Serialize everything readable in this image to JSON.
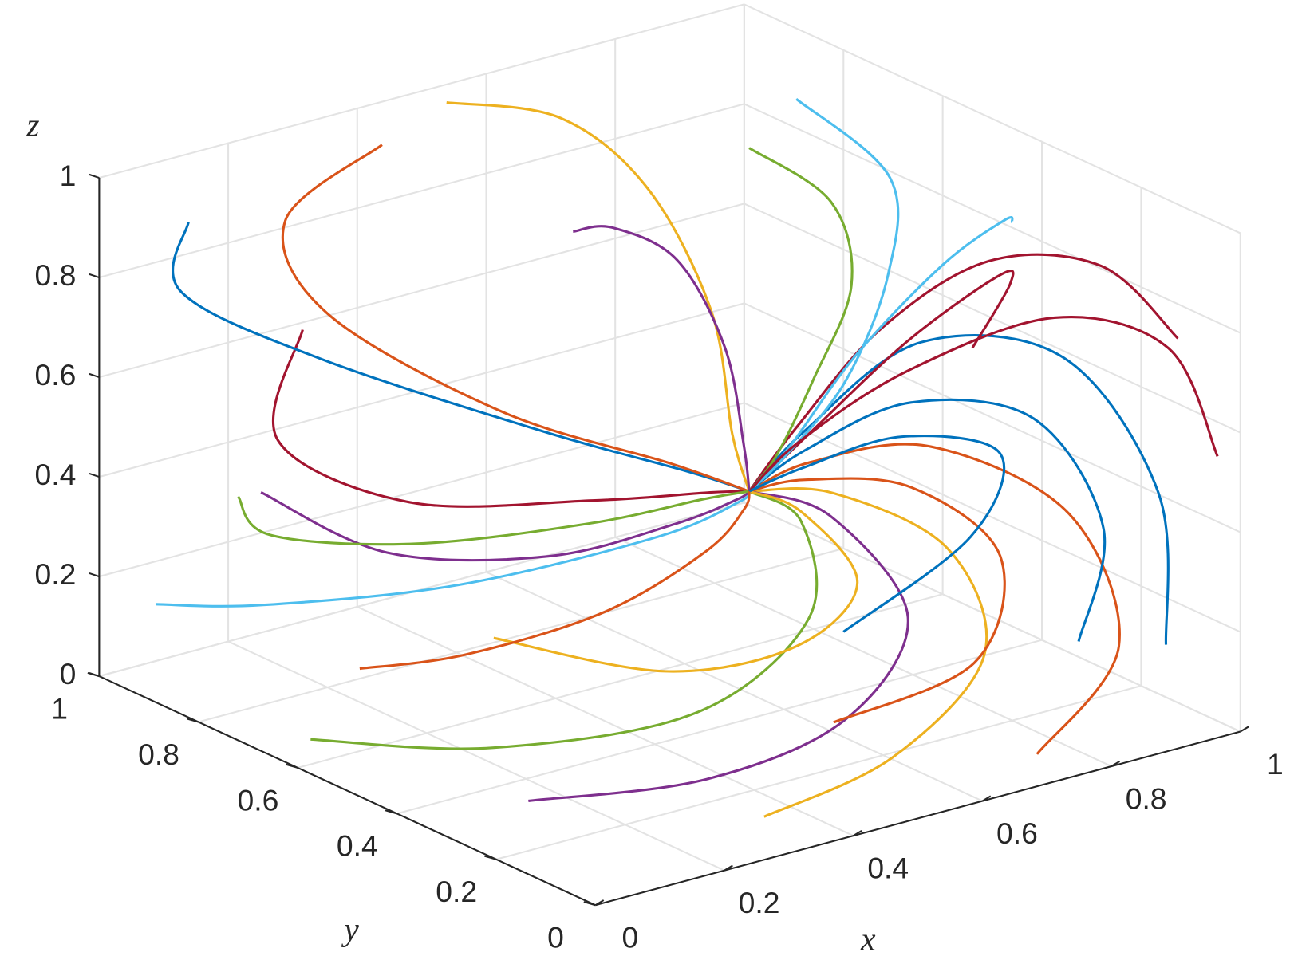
{
  "chart_data": {
    "type": "line3d",
    "xlabel": "x",
    "ylabel": "y",
    "zlabel": "z",
    "xlim": [
      0,
      1
    ],
    "ylim": [
      0,
      1
    ],
    "zlim": [
      0,
      1
    ],
    "xticks": [
      0,
      0.2,
      0.4,
      0.6,
      0.8,
      1
    ],
    "yticks": [
      0,
      0.2,
      0.4,
      0.6,
      0.8,
      1
    ],
    "zticks": [
      0,
      0.2,
      0.4,
      0.6,
      0.8,
      1
    ],
    "grid": true,
    "series": [
      {
        "color": "#A2142F",
        "x": [
          0.98,
          0.9,
          0.78,
          0.66,
          0.56,
          0.5
        ],
        "y": [
          0.1,
          0.15,
          0.22,
          0.28,
          0.32,
          0.34
        ],
        "z": [
          0.75,
          0.9,
          0.92,
          0.8,
          0.62,
          0.5
        ]
      },
      {
        "color": "#0072BD",
        "x": [
          0.9,
          0.95,
          0.88,
          0.72,
          0.58,
          0.5
        ],
        "y": [
          0.02,
          0.1,
          0.2,
          0.28,
          0.33,
          0.34
        ],
        "z": [
          0.2,
          0.45,
          0.7,
          0.75,
          0.6,
          0.5
        ]
      },
      {
        "color": "#D95319",
        "x": [
          0.7,
          0.85,
          0.85,
          0.72,
          0.58,
          0.5
        ],
        "y": [
          0.02,
          0.05,
          0.15,
          0.26,
          0.32,
          0.34
        ],
        "z": [
          0.05,
          0.2,
          0.42,
          0.55,
          0.54,
          0.5
        ]
      },
      {
        "color": "#EDB120",
        "x": [
          0.3,
          0.5,
          0.68,
          0.7,
          0.6,
          0.5
        ],
        "y": [
          0.05,
          0.05,
          0.1,
          0.2,
          0.3,
          0.34
        ],
        "z": [
          0.05,
          0.1,
          0.22,
          0.38,
          0.48,
          0.5
        ]
      },
      {
        "color": "#7E2F8E",
        "x": [
          0.05,
          0.25,
          0.45,
          0.6,
          0.58,
          0.5
        ],
        "y": [
          0.2,
          0.1,
          0.08,
          0.15,
          0.28,
          0.34
        ],
        "z": [
          0.1,
          0.12,
          0.18,
          0.3,
          0.45,
          0.5
        ]
      },
      {
        "color": "#77AC30",
        "x": [
          0.02,
          0.15,
          0.35,
          0.5,
          0.55,
          0.5
        ],
        "y": [
          0.6,
          0.4,
          0.25,
          0.22,
          0.3,
          0.34
        ],
        "z": [
          0.05,
          0.08,
          0.15,
          0.3,
          0.44,
          0.5
        ]
      },
      {
        "color": "#4DBEEE",
        "x": [
          0.05,
          0.1,
          0.25,
          0.42,
          0.5,
          0.5
        ],
        "y": [
          0.95,
          0.8,
          0.6,
          0.42,
          0.36,
          0.34
        ],
        "z": [
          0.15,
          0.2,
          0.28,
          0.4,
          0.47,
          0.5
        ]
      },
      {
        "color": "#A2142F",
        "x": [
          0.3,
          0.2,
          0.25,
          0.38,
          0.47,
          0.5
        ],
        "y": [
          0.98,
          0.9,
          0.7,
          0.5,
          0.38,
          0.34
        ],
        "z": [
          0.6,
          0.45,
          0.4,
          0.45,
          0.49,
          0.5
        ]
      },
      {
        "color": "#0072BD",
        "x": [
          0.1,
          0.05,
          0.15,
          0.32,
          0.45,
          0.5
        ],
        "y": [
          0.95,
          0.9,
          0.75,
          0.52,
          0.4,
          0.34
        ],
        "z": [
          0.9,
          0.8,
          0.7,
          0.6,
          0.53,
          0.5
        ]
      },
      {
        "color": "#D95319",
        "x": [
          0.4,
          0.25,
          0.2,
          0.3,
          0.44,
          0.5
        ],
        "y": [
          0.95,
          0.95,
          0.8,
          0.58,
          0.42,
          0.34
        ],
        "z": [
          0.95,
          0.85,
          0.75,
          0.62,
          0.54,
          0.5
        ]
      },
      {
        "color": "#EDB120",
        "x": [
          0.5,
          0.6,
          0.62,
          0.58,
          0.52,
          0.5
        ],
        "y": [
          0.95,
          0.85,
          0.7,
          0.52,
          0.4,
          0.34
        ],
        "z": [
          1.0,
          0.98,
          0.9,
          0.75,
          0.58,
          0.5
        ]
      },
      {
        "color": "#7E2F8E",
        "x": [
          0.35,
          0.45,
          0.55,
          0.57,
          0.53,
          0.5
        ],
        "y": [
          0.5,
          0.55,
          0.55,
          0.48,
          0.39,
          0.34
        ],
        "z": [
          1.0,
          0.95,
          0.85,
          0.7,
          0.56,
          0.5
        ]
      },
      {
        "color": "#77AC30",
        "x": [
          0.7,
          0.75,
          0.72,
          0.63,
          0.55,
          0.5
        ],
        "y": [
          0.6,
          0.5,
          0.42,
          0.38,
          0.35,
          0.34
        ],
        "z": [
          1.0,
          0.92,
          0.8,
          0.66,
          0.55,
          0.5
        ]
      },
      {
        "color": "#4DBEEE",
        "x": [
          0.8,
          0.85,
          0.8,
          0.68,
          0.57,
          0.5
        ],
        "y": [
          0.2,
          0.28,
          0.34,
          0.36,
          0.35,
          0.34
        ],
        "z": [
          1.0,
          0.95,
          0.85,
          0.7,
          0.56,
          0.5
        ]
      },
      {
        "color": "#A2142F",
        "x": [
          0.6,
          0.72,
          0.78,
          0.7,
          0.58,
          0.5
        ],
        "y": [
          0.02,
          0.1,
          0.2,
          0.28,
          0.32,
          0.34
        ],
        "z": [
          0.9,
          0.95,
          0.9,
          0.76,
          0.6,
          0.5
        ]
      },
      {
        "color": "#0072BD",
        "x": [
          0.98,
          0.98,
          0.88,
          0.72,
          0.58,
          0.5
        ],
        "y": [
          0.3,
          0.25,
          0.26,
          0.3,
          0.33,
          0.34
        ],
        "z": [
          0.05,
          0.3,
          0.55,
          0.62,
          0.56,
          0.5
        ]
      },
      {
        "color": "#D95319",
        "x": [
          0.6,
          0.78,
          0.82,
          0.72,
          0.58,
          0.5
        ],
        "y": [
          0.3,
          0.25,
          0.25,
          0.3,
          0.33,
          0.34
        ],
        "z": [
          0.02,
          0.1,
          0.3,
          0.45,
          0.5,
          0.5
        ]
      },
      {
        "color": "#EDB120",
        "x": [
          0.15,
          0.3,
          0.45,
          0.56,
          0.55,
          0.5
        ],
        "y": [
          0.4,
          0.25,
          0.18,
          0.2,
          0.3,
          0.34
        ],
        "z": [
          0.3,
          0.25,
          0.28,
          0.36,
          0.46,
          0.5
        ]
      },
      {
        "color": "#7E2F8E",
        "x": [
          0.02,
          0.1,
          0.25,
          0.4,
          0.48,
          0.5
        ],
        "y": [
          0.7,
          0.55,
          0.42,
          0.36,
          0.34,
          0.34
        ],
        "z": [
          0.5,
          0.42,
          0.42,
          0.46,
          0.49,
          0.5
        ]
      },
      {
        "color": "#77AC30",
        "x": [
          0.2,
          0.15,
          0.22,
          0.36,
          0.46,
          0.5
        ],
        "y": [
          0.98,
          0.85,
          0.65,
          0.48,
          0.38,
          0.34
        ],
        "z": [
          0.3,
          0.3,
          0.35,
          0.42,
          0.48,
          0.5
        ]
      },
      {
        "color": "#4DBEEE",
        "x": [
          0.85,
          0.88,
          0.8,
          0.68,
          0.56,
          0.5
        ],
        "y": [
          0.7,
          0.55,
          0.45,
          0.38,
          0.35,
          0.34
        ],
        "z": [
          1.0,
          0.9,
          0.78,
          0.64,
          0.54,
          0.5
        ]
      },
      {
        "color": "#A2142F",
        "x": [
          0.98,
          0.95,
          0.85,
          0.7,
          0.57,
          0.5
        ],
        "y": [
          0.02,
          0.08,
          0.18,
          0.28,
          0.33,
          0.34
        ],
        "z": [
          0.55,
          0.75,
          0.8,
          0.7,
          0.58,
          0.5
        ]
      },
      {
        "color": "#0072BD",
        "x": [
          0.4,
          0.62,
          0.72,
          0.66,
          0.56,
          0.5
        ],
        "y": [
          0.02,
          0.05,
          0.12,
          0.24,
          0.31,
          0.34
        ],
        "z": [
          0.4,
          0.5,
          0.6,
          0.6,
          0.54,
          0.5
        ]
      },
      {
        "color": "#D95319",
        "x": [
          0.25,
          0.3,
          0.4,
          0.48,
          0.5,
          0.5
        ],
        "y": [
          0.8,
          0.65,
          0.5,
          0.4,
          0.35,
          0.34
        ],
        "z": [
          0.02,
          0.1,
          0.22,
          0.36,
          0.46,
          0.5
        ]
      }
    ]
  }
}
